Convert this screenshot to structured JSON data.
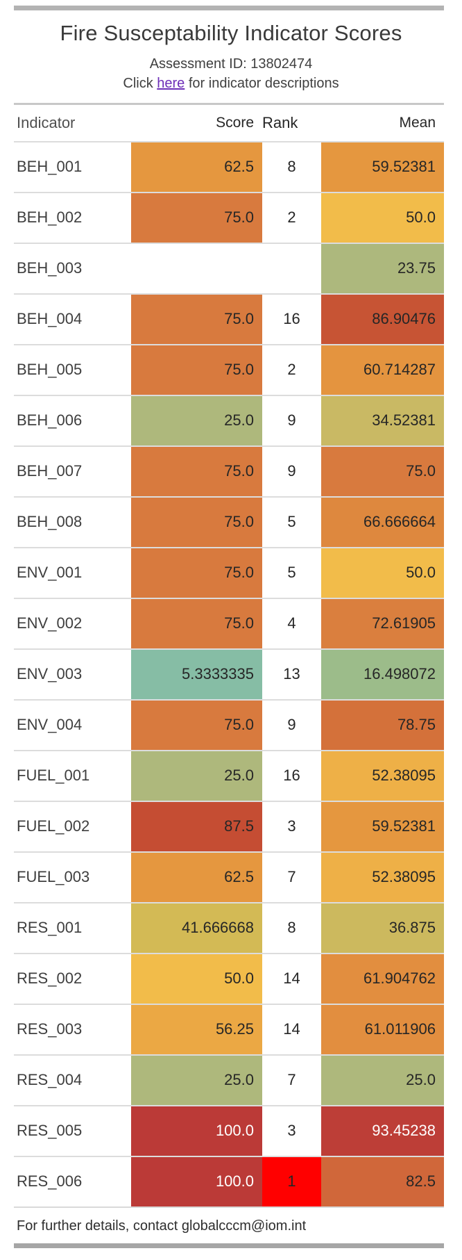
{
  "header": {
    "title": "Fire Susceptability Indicator Scores",
    "assessment_id": "Assessment ID: 13802474",
    "link_prefix": "Click ",
    "link_text": "here",
    "link_suffix": " for indicator descriptions",
    "link_color": "#6d2eb8"
  },
  "table": {
    "columns": [
      "Indicator",
      "Score",
      "Rank",
      "Mean"
    ],
    "rows": [
      {
        "indicator": "BEH_001",
        "score": "62.5",
        "score_bg": "#e5973f",
        "rank": "8",
        "rank_bg": "",
        "mean": "59.52381",
        "mean_bg": "#e5973f",
        "score_fg": "",
        "mean_fg": ""
      },
      {
        "indicator": "BEH_002",
        "score": "75.0",
        "score_bg": "#d87a3e",
        "rank": "2",
        "rank_bg": "",
        "mean": "50.0",
        "mean_bg": "#f2bc4a",
        "score_fg": "",
        "mean_fg": ""
      },
      {
        "indicator": "BEH_003",
        "score": "",
        "score_bg": "",
        "rank": "",
        "rank_bg": "",
        "mean": "23.75",
        "mean_bg": "#adb87d",
        "score_fg": "",
        "mean_fg": ""
      },
      {
        "indicator": "BEH_004",
        "score": "75.0",
        "score_bg": "#d87a3e",
        "rank": "16",
        "rank_bg": "",
        "mean": "86.90476",
        "mean_bg": "#c75434",
        "score_fg": "",
        "mean_fg": ""
      },
      {
        "indicator": "BEH_005",
        "score": "75.0",
        "score_bg": "#d87a3e",
        "rank": "2",
        "rank_bg": "",
        "mean": "60.714287",
        "mean_bg": "#e4943f",
        "score_fg": "",
        "mean_fg": ""
      },
      {
        "indicator": "BEH_006",
        "score": "25.0",
        "score_bg": "#aeb87c",
        "rank": "9",
        "rank_bg": "",
        "mean": "34.52381",
        "mean_bg": "#c9b964",
        "score_fg": "",
        "mean_fg": ""
      },
      {
        "indicator": "BEH_007",
        "score": "75.0",
        "score_bg": "#d87a3e",
        "rank": "9",
        "rank_bg": "",
        "mean": "75.0",
        "mean_bg": "#d87a3e",
        "score_fg": "",
        "mean_fg": ""
      },
      {
        "indicator": "BEH_008",
        "score": "75.0",
        "score_bg": "#d87a3e",
        "rank": "5",
        "rank_bg": "",
        "mean": "66.666664",
        "mean_bg": "#de883e",
        "score_fg": "",
        "mean_fg": ""
      },
      {
        "indicator": "ENV_001",
        "score": "75.0",
        "score_bg": "#d87a3e",
        "rank": "5",
        "rank_bg": "",
        "mean": "50.0",
        "mean_bg": "#f2bc4a",
        "score_fg": "",
        "mean_fg": ""
      },
      {
        "indicator": "ENV_002",
        "score": "75.0",
        "score_bg": "#d87a3e",
        "rank": "4",
        "rank_bg": "",
        "mean": "72.61905",
        "mean_bg": "#da7f3e",
        "score_fg": "",
        "mean_fg": ""
      },
      {
        "indicator": "ENV_003",
        "score": "5.3333335",
        "score_bg": "#86bda5",
        "rank": "13",
        "rank_bg": "",
        "mean": "16.498072",
        "mean_bg": "#9cbc8a",
        "score_fg": "",
        "mean_fg": ""
      },
      {
        "indicator": "ENV_004",
        "score": "75.0",
        "score_bg": "#d87a3e",
        "rank": "9",
        "rank_bg": "",
        "mean": "78.75",
        "mean_bg": "#d4713a",
        "score_fg": "",
        "mean_fg": ""
      },
      {
        "indicator": "FUEL_001",
        "score": "25.0",
        "score_bg": "#aeb87c",
        "rank": "16",
        "rank_bg": "",
        "mean": "52.38095",
        "mean_bg": "#eeb047",
        "score_fg": "",
        "mean_fg": ""
      },
      {
        "indicator": "FUEL_002",
        "score": "87.5",
        "score_bg": "#c54d33",
        "rank": "3",
        "rank_bg": "",
        "mean": "59.52381",
        "mean_bg": "#e5973f",
        "score_fg": "",
        "mean_fg": ""
      },
      {
        "indicator": "FUEL_003",
        "score": "62.5",
        "score_bg": "#e5973f",
        "rank": "7",
        "rank_bg": "",
        "mean": "52.38095",
        "mean_bg": "#eeb047",
        "score_fg": "",
        "mean_fg": ""
      },
      {
        "indicator": "RES_001",
        "score": "41.666668",
        "score_bg": "#d3ba55",
        "rank": "8",
        "rank_bg": "",
        "mean": "36.875",
        "mean_bg": "#ccb95e",
        "score_fg": "",
        "mean_fg": ""
      },
      {
        "indicator": "RES_002",
        "score": "50.0",
        "score_bg": "#f2bc4a",
        "rank": "14",
        "rank_bg": "",
        "mean": "61.904762",
        "mean_bg": "#e28e3f",
        "score_fg": "",
        "mean_fg": ""
      },
      {
        "indicator": "RES_003",
        "score": "56.25",
        "score_bg": "#eba844",
        "rank": "14",
        "rank_bg": "",
        "mean": "61.011906",
        "mean_bg": "#e28e3f",
        "score_fg": "",
        "mean_fg": ""
      },
      {
        "indicator": "RES_004",
        "score": "25.0",
        "score_bg": "#aeb87c",
        "rank": "7",
        "rank_bg": "",
        "mean": "25.0",
        "mean_bg": "#aeb87c",
        "score_fg": "",
        "mean_fg": ""
      },
      {
        "indicator": "RES_005",
        "score": "100.0",
        "score_bg": "#bb3a37",
        "rank": "3",
        "rank_bg": "",
        "mean": "93.45238",
        "mean_bg": "#bd3e37",
        "score_fg": "#ffffff",
        "mean_fg": "#ffffff"
      },
      {
        "indicator": "RES_006",
        "score": "100.0",
        "score_bg": "#bb3a37",
        "rank": "1",
        "rank_bg": "#ff0000",
        "mean": "82.5",
        "mean_bg": "#d0673a",
        "score_fg": "#ffffff",
        "mean_fg": ""
      }
    ]
  },
  "footer": {
    "text": "For further details, contact globalcccm@iom.int"
  },
  "colors": {
    "top_bar": "#b3b3b3",
    "bottom_bar": "#a6a6a6",
    "divider": "#c8c8c8",
    "row_border": "#dcdcdc",
    "rank_alert": "#ff0000",
    "high_value": "#bb3a37",
    "low_value": "#86bda5"
  }
}
